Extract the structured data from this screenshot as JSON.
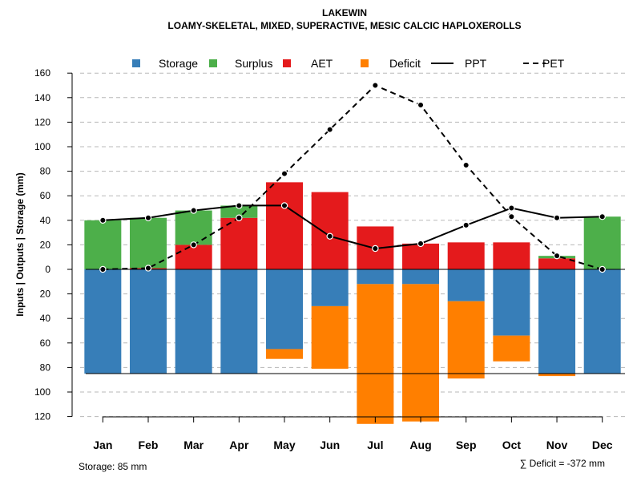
{
  "chart_data": {
    "type": "bar",
    "title": "LAKEWIN",
    "subtitle": "LOAMY-SKELETAL, MIXED, SUPERACTIVE, MESIC CALCIC HAPLOXEROLLS",
    "ylabel": "Inputs | Outputs | Storage    (mm)",
    "categories": [
      "Jan",
      "Feb",
      "Mar",
      "Apr",
      "May",
      "Jun",
      "Jul",
      "Aug",
      "Sep",
      "Oct",
      "Nov",
      "Dec"
    ],
    "y_ticks_up": [
      "0",
      "20",
      "40",
      "60",
      "80",
      "100",
      "120",
      "140",
      "160"
    ],
    "y_ticks_down": [
      "20",
      "40",
      "60",
      "80",
      "100",
      "120"
    ],
    "ylim": [
      -120,
      160
    ],
    "legend": [
      {
        "name": "Storage",
        "kind": "box",
        "color": "#377eb8"
      },
      {
        "name": "Surplus",
        "kind": "box",
        "color": "#4daf4a"
      },
      {
        "name": "AET",
        "kind": "box",
        "color": "#e41a1c"
      },
      {
        "name": "Deficit",
        "kind": "box",
        "color": "#ff7f00"
      },
      {
        "name": "PPT",
        "kind": "solid",
        "color": "#000000"
      },
      {
        "name": "PET",
        "kind": "dashed",
        "color": "#000000"
      }
    ],
    "series": [
      {
        "name": "AET",
        "values": [
          0,
          1,
          20,
          42,
          71,
          63,
          35,
          21,
          22,
          22,
          9,
          0
        ]
      },
      {
        "name": "Surplus",
        "values": [
          40,
          41,
          28,
          10,
          0,
          0,
          0,
          0,
          0,
          0,
          2,
          43
        ]
      },
      {
        "name": "Storage",
        "values": [
          85,
          85,
          85,
          85,
          65,
          30,
          12,
          12,
          26,
          54,
          85,
          85
        ]
      },
      {
        "name": "Deficit",
        "values": [
          0,
          0,
          0,
          0,
          8,
          51,
          114,
          112,
          63,
          21,
          2,
          0
        ]
      },
      {
        "name": "PPT",
        "values": [
          40,
          42,
          48,
          52,
          52,
          27,
          17,
          21,
          36,
          50,
          42,
          43
        ]
      },
      {
        "name": "PET",
        "values": [
          0,
          1,
          20,
          42,
          78,
          114,
          150,
          134,
          85,
          43,
          11,
          0
        ]
      }
    ],
    "storage_capacity": 85
  },
  "footer": {
    "storage_label": "Storage: 85 mm",
    "deficit_label": "∑ Deficit = -372 mm"
  }
}
